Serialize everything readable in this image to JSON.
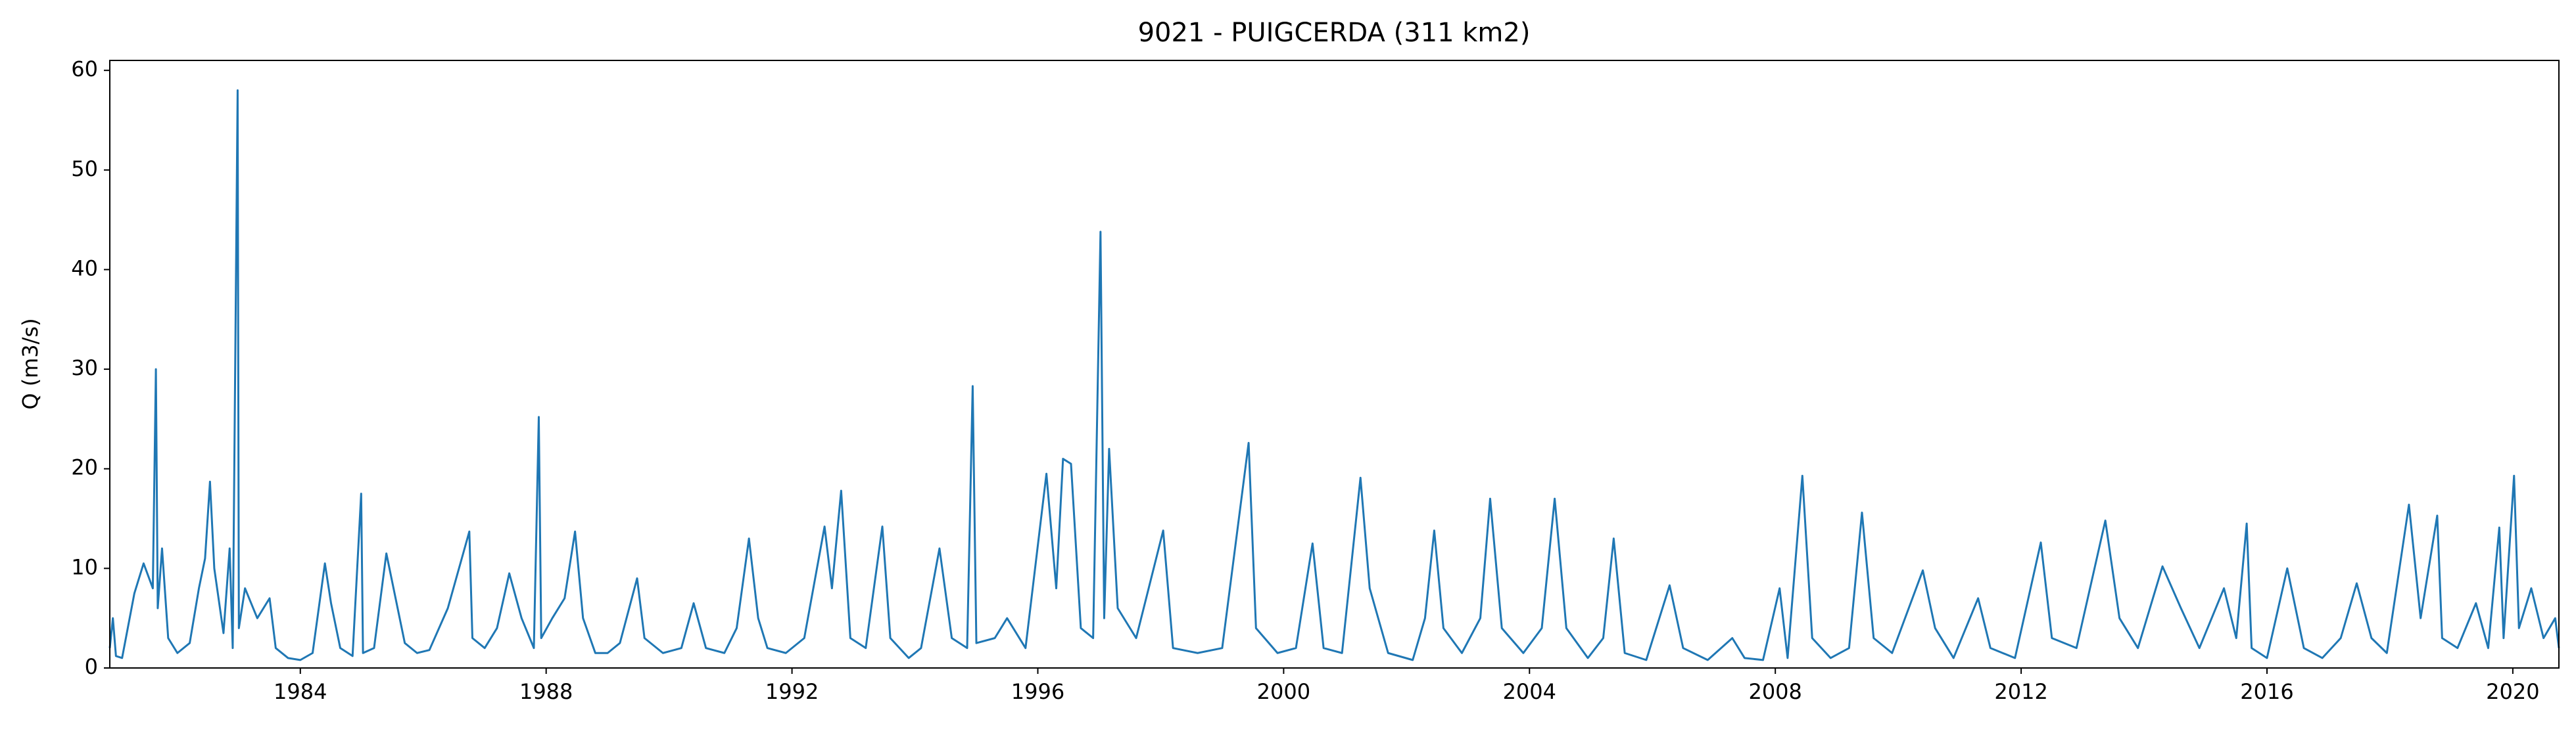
{
  "chart_data": {
    "type": "line",
    "title": "9021 - PUIGCERDA (311 km2)",
    "y_label": "Q (m3/s)",
    "color": "#1f77b4",
    "xlim": [
      1980.9,
      2020.75
    ],
    "ylim": [
      0,
      61
    ],
    "xticks": [
      1984,
      1988,
      1992,
      1996,
      2000,
      2004,
      2008,
      2012,
      2016,
      2020
    ],
    "yticks": [
      0,
      10,
      20,
      30,
      40,
      50,
      60
    ],
    "x": [
      1980.9,
      1980.95,
      1981.0,
      1981.1,
      1981.3,
      1981.45,
      1981.6,
      1981.65,
      1981.68,
      1981.75,
      1981.85,
      1982.0,
      1982.2,
      1982.35,
      1982.45,
      1982.53,
      1982.6,
      1982.75,
      1982.85,
      1982.9,
      1982.98,
      1983.0,
      1983.1,
      1983.3,
      1983.5,
      1983.6,
      1983.8,
      1984.0,
      1984.2,
      1984.3,
      1984.4,
      1984.5,
      1984.65,
      1984.85,
      1984.99,
      1985.02,
      1985.2,
      1985.4,
      1985.55,
      1985.7,
      1985.9,
      1986.1,
      1986.4,
      1986.75,
      1986.8,
      1987.0,
      1987.2,
      1987.4,
      1987.6,
      1987.8,
      1987.88,
      1987.92,
      1988.1,
      1988.3,
      1988.47,
      1988.6,
      1988.8,
      1989.0,
      1989.2,
      1989.48,
      1989.6,
      1989.9,
      1990.2,
      1990.4,
      1990.6,
      1990.9,
      1991.1,
      1991.3,
      1991.45,
      1991.6,
      1991.9,
      1992.2,
      1992.53,
      1992.65,
      1992.8,
      1992.95,
      1993.2,
      1993.47,
      1993.6,
      1993.9,
      1994.1,
      1994.4,
      1994.6,
      1994.85,
      1994.94,
      1995.0,
      1995.3,
      1995.5,
      1995.8,
      1996.14,
      1996.3,
      1996.41,
      1996.54,
      1996.7,
      1996.9,
      1997.02,
      1997.08,
      1997.16,
      1997.3,
      1997.6,
      1998.04,
      1998.2,
      1998.6,
      1999.0,
      1999.43,
      1999.55,
      1999.9,
      2000.2,
      2000.47,
      2000.65,
      2000.95,
      2001.25,
      2001.4,
      2001.7,
      2002.1,
      2002.3,
      2002.45,
      2002.6,
      2002.9,
      2003.2,
      2003.36,
      2003.55,
      2003.9,
      2004.2,
      2004.41,
      2004.6,
      2004.95,
      2005.2,
      2005.37,
      2005.55,
      2005.9,
      2006.28,
      2006.5,
      2006.9,
      2007.3,
      2007.5,
      2007.8,
      2008.07,
      2008.2,
      2008.44,
      2008.6,
      2008.9,
      2009.2,
      2009.41,
      2009.6,
      2009.9,
      2010.4,
      2010.6,
      2010.9,
      2011.3,
      2011.5,
      2011.9,
      2012.32,
      2012.5,
      2012.9,
      2013.37,
      2013.6,
      2013.9,
      2014.3,
      2014.6,
      2014.9,
      2015.3,
      2015.5,
      2015.67,
      2015.75,
      2016.0,
      2016.33,
      2016.6,
      2016.9,
      2017.2,
      2017.46,
      2017.7,
      2017.95,
      2018.31,
      2018.5,
      2018.77,
      2018.85,
      2019.1,
      2019.4,
      2019.6,
      2019.78,
      2019.85,
      2020.02,
      2020.1,
      2020.3,
      2020.5,
      2020.69,
      2020.75
    ],
    "values": [
      2.0,
      5.0,
      1.2,
      1.0,
      7.5,
      10.5,
      8.0,
      30.0,
      6.0,
      12.0,
      3.0,
      1.5,
      2.5,
      8.0,
      11.0,
      18.7,
      10.0,
      3.5,
      12.0,
      2.0,
      58.0,
      4.0,
      8.0,
      5.0,
      7.0,
      2.0,
      1.0,
      0.8,
      1.5,
      6.0,
      10.5,
      6.5,
      2.0,
      1.2,
      17.5,
      1.5,
      2.0,
      11.5,
      7.0,
      2.5,
      1.5,
      1.8,
      6.0,
      13.7,
      3.0,
      2.0,
      4.0,
      9.5,
      5.0,
      2.0,
      25.2,
      3.0,
      5.0,
      7.0,
      13.7,
      5.0,
      1.5,
      1.5,
      2.5,
      9.0,
      3.0,
      1.5,
      2.0,
      6.5,
      2.0,
      1.5,
      4.0,
      13.0,
      5.0,
      2.0,
      1.5,
      3.0,
      14.2,
      8.0,
      17.8,
      3.0,
      2.0,
      14.2,
      3.0,
      1.0,
      2.0,
      12.0,
      3.0,
      2.0,
      28.3,
      2.5,
      3.0,
      5.0,
      2.0,
      19.5,
      8.0,
      21.0,
      20.5,
      4.0,
      3.0,
      43.8,
      5.0,
      22.0,
      6.0,
      3.0,
      13.8,
      2.0,
      1.5,
      2.0,
      22.6,
      4.0,
      1.5,
      2.0,
      12.5,
      2.0,
      1.5,
      19.1,
      8.0,
      1.5,
      0.8,
      5.0,
      13.8,
      4.0,
      1.5,
      5.0,
      17.0,
      4.0,
      1.5,
      4.0,
      17.0,
      4.0,
      1.0,
      3.0,
      13.0,
      1.5,
      0.8,
      8.3,
      2.0,
      0.8,
      3.0,
      1.0,
      0.8,
      8.0,
      1.0,
      19.3,
      3.0,
      1.0,
      2.0,
      15.6,
      3.0,
      1.5,
      9.8,
      4.0,
      1.0,
      7.0,
      2.0,
      1.0,
      12.6,
      3.0,
      2.0,
      14.8,
      5.0,
      2.0,
      10.2,
      6.0,
      2.0,
      8.0,
      3.0,
      14.5,
      2.0,
      1.0,
      10.0,
      2.0,
      1.0,
      3.0,
      8.5,
      3.0,
      1.5,
      16.4,
      5.0,
      15.3,
      3.0,
      2.0,
      6.5,
      2.0,
      14.1,
      3.0,
      19.3,
      4.0,
      8.0,
      3.0,
      5.0,
      2.0
    ]
  }
}
